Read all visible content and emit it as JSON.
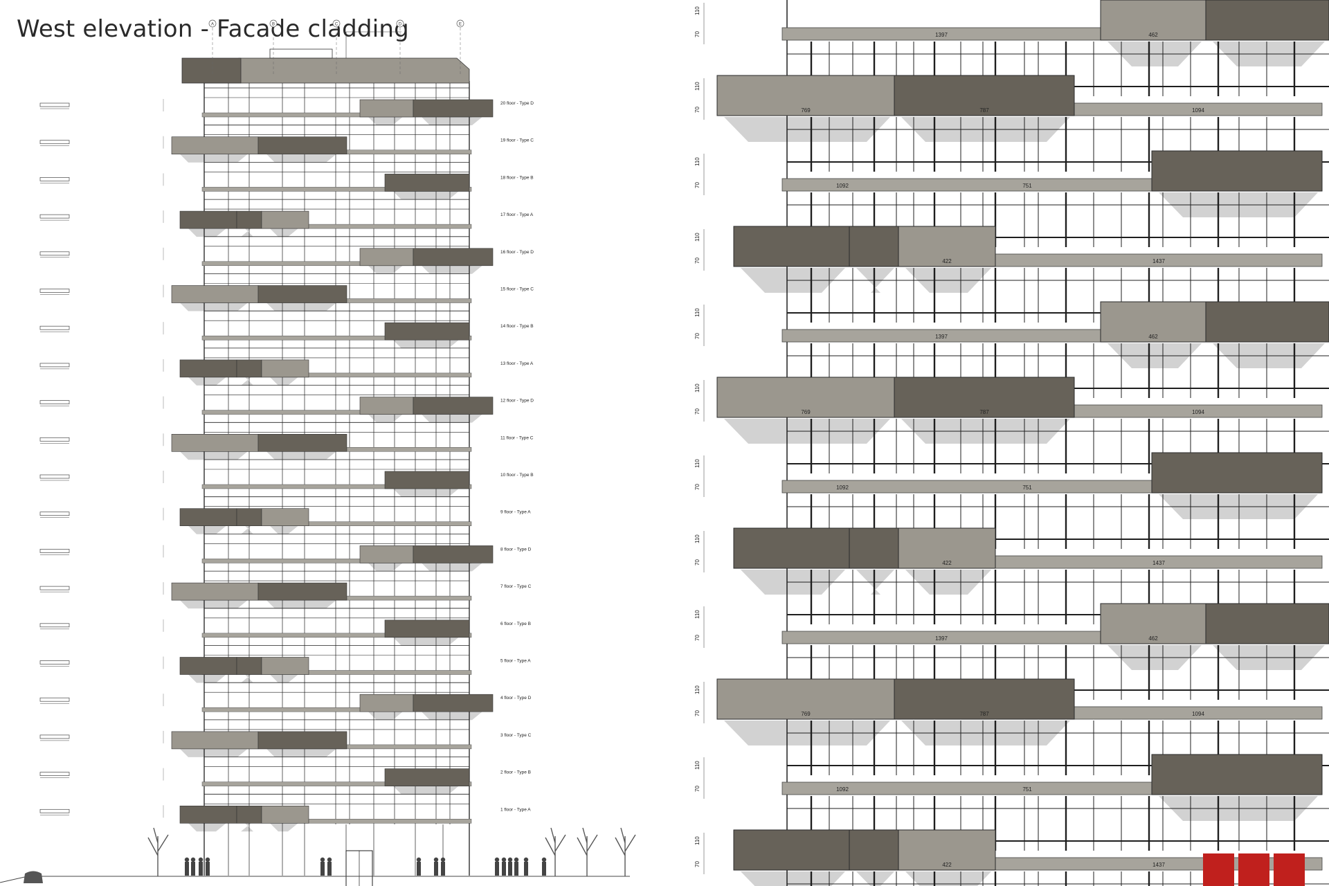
{
  "title": "West elevation - Facade cladding",
  "colors": {
    "dark_panel": "#676259",
    "light_panel": "#9b978e",
    "slab": "#a7a49c",
    "shadow": "#d2d2d2",
    "line": "#1e1e1e",
    "accent_red": "#c0201d"
  },
  "grid_markers": [
    "A",
    "B",
    "C",
    "D",
    "E"
  ],
  "floors": [
    {
      "label": "20 floor - Type D",
      "type": "D"
    },
    {
      "label": "19 floor - Type C",
      "type": "C"
    },
    {
      "label": "18 floor - Type B",
      "type": "B"
    },
    {
      "label": "17 floor - Type A",
      "type": "A"
    },
    {
      "label": "16 floor - Type D",
      "type": "D"
    },
    {
      "label": "15 floor - Type C",
      "type": "C"
    },
    {
      "label": "14 floor - Type B",
      "type": "B"
    },
    {
      "label": "13 floor - Type A",
      "type": "A"
    },
    {
      "label": "12 floor - Type D",
      "type": "D"
    },
    {
      "label": "11 floor - Type C",
      "type": "C"
    },
    {
      "label": "10 floor - Type B",
      "type": "B"
    },
    {
      "label": "9 floor - Type A",
      "type": "A"
    },
    {
      "label": "8 floor - Type D",
      "type": "D"
    },
    {
      "label": "7 floor - Type C",
      "type": "C"
    },
    {
      "label": "6 floor - Type B",
      "type": "B"
    },
    {
      "label": "5 floor - Type A",
      "type": "A"
    },
    {
      "label": "4 floor - Type D",
      "type": "D"
    },
    {
      "label": "3 floor - Type C",
      "type": "C"
    },
    {
      "label": "2 floor - Type B",
      "type": "B"
    },
    {
      "label": "1 floor - Type A",
      "type": "A"
    }
  ],
  "detail": {
    "vertical_dims": [
      "110",
      "70"
    ],
    "floor_dims": {
      "D": [
        "1397",
        "462"
      ],
      "C": [
        "769",
        "787",
        "1094"
      ],
      "B": [
        "1092",
        "751"
      ],
      "A": [
        "422",
        "1437"
      ]
    },
    "sequence": [
      "D",
      "C",
      "B",
      "A",
      "D",
      "C",
      "B",
      "A",
      "D",
      "C",
      "B",
      "A"
    ]
  }
}
